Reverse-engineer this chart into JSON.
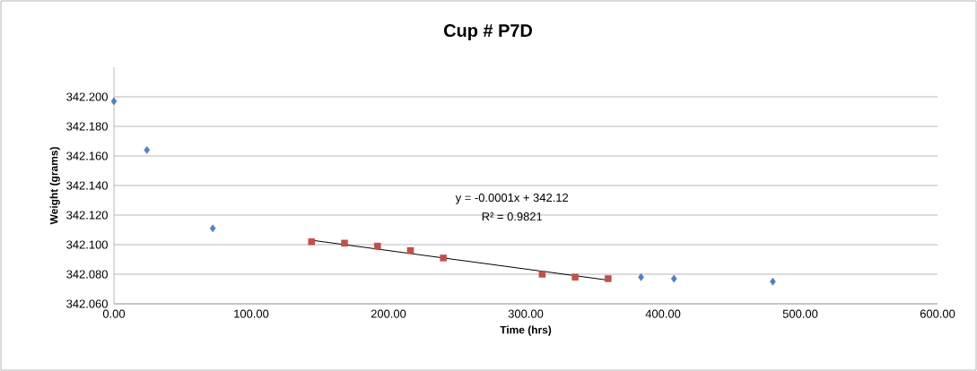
{
  "chart_data": {
    "type": "scatter",
    "title": "Cup # P7D",
    "xlabel": "Time (hrs)",
    "ylabel": "Weight (grams)",
    "annotations": [
      "y = -0.0001x + 342.12",
      "R² = 0.9821"
    ],
    "series": [
      {
        "color": "#4f81bd",
        "marker": "diamond",
        "x": [
          0,
          24,
          72,
          384,
          408,
          480
        ],
        "values": [
          342.197,
          342.164,
          342.111,
          342.078,
          342.077,
          342.075
        ]
      },
      {
        "color": "#c0504d",
        "marker": "square",
        "x": [
          144,
          168,
          192,
          216,
          240,
          312,
          336,
          360
        ],
        "values": [
          342.102,
          342.101,
          342.099,
          342.096,
          342.091,
          342.08,
          342.078,
          342.077
        ]
      },
      {
        "type": "line",
        "color": "#000000",
        "marker": "none",
        "x": [
          144,
          360
        ],
        "values": [
          342.103,
          342.076
        ]
      }
    ],
    "xlim": [
      0,
      600
    ],
    "ylim": [
      342.06,
      342.22
    ],
    "xticks": [
      {
        "value": 0,
        "label": "0.00"
      },
      {
        "value": 100,
        "label": "100.00"
      },
      {
        "value": 200,
        "label": "200.00"
      },
      {
        "value": 300,
        "label": "300.00"
      },
      {
        "value": 400,
        "label": "400.00"
      },
      {
        "value": 500,
        "label": "500.00"
      },
      {
        "value": 600,
        "label": "600.00"
      }
    ],
    "yticks": [
      {
        "value": 342.06,
        "label": "342.060"
      },
      {
        "value": 342.08,
        "label": "342.080"
      },
      {
        "value": 342.1,
        "label": "342.100"
      },
      {
        "value": 342.12,
        "label": "342.120"
      },
      {
        "value": 342.14,
        "label": "342.140"
      },
      {
        "value": 342.16,
        "label": "342.160"
      },
      {
        "value": 342.18,
        "label": "342.180"
      },
      {
        "value": 342.2,
        "label": "342.200"
      }
    ],
    "grid": "y"
  }
}
